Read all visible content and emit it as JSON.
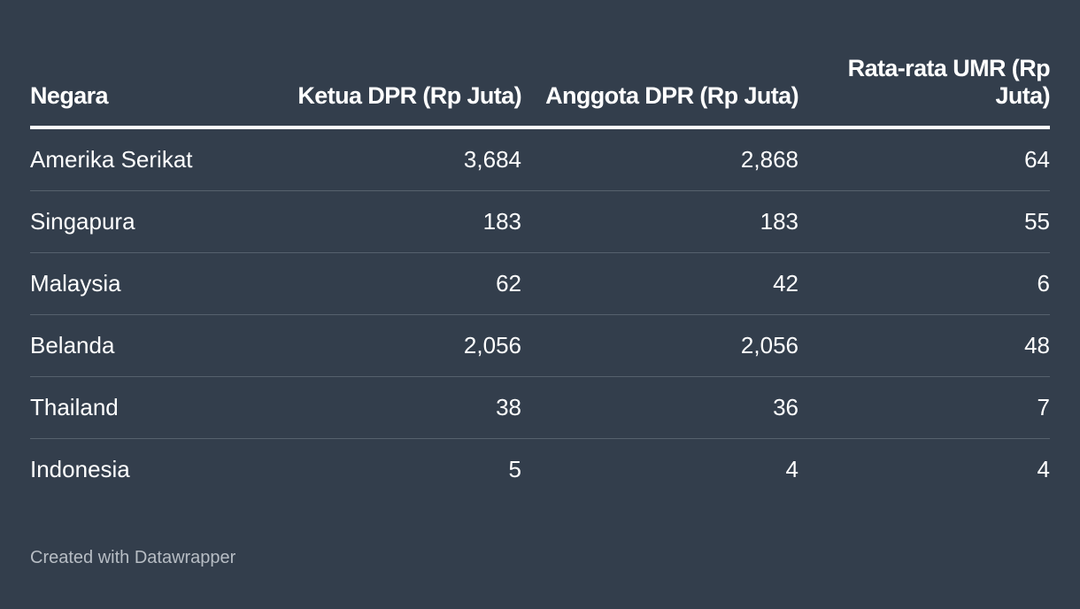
{
  "chart_data": {
    "type": "table",
    "columns": [
      "Negara",
      "Ketua DPR (Rp Juta)",
      "Anggota DPR (Rp Juta)",
      "Rata-rata UMR (Rp Juta)"
    ],
    "rows": [
      [
        "Amerika Serikat",
        "3,684",
        "2,868",
        "64"
      ],
      [
        "Singapura",
        "183",
        "183",
        "55"
      ],
      [
        "Malaysia",
        "62",
        "42",
        "6"
      ],
      [
        "Belanda",
        "2,056",
        "2,056",
        "48"
      ],
      [
        "Thailand",
        "38",
        "36",
        "7"
      ],
      [
        "Indonesia",
        "5",
        "4",
        "4"
      ]
    ]
  },
  "footer": {
    "credit": "Created with Datawrapper"
  },
  "colors": {
    "background": "#333e4c",
    "text": "#ffffff",
    "row_divider": "#56616d",
    "footer_text": "#b7bdc4"
  }
}
